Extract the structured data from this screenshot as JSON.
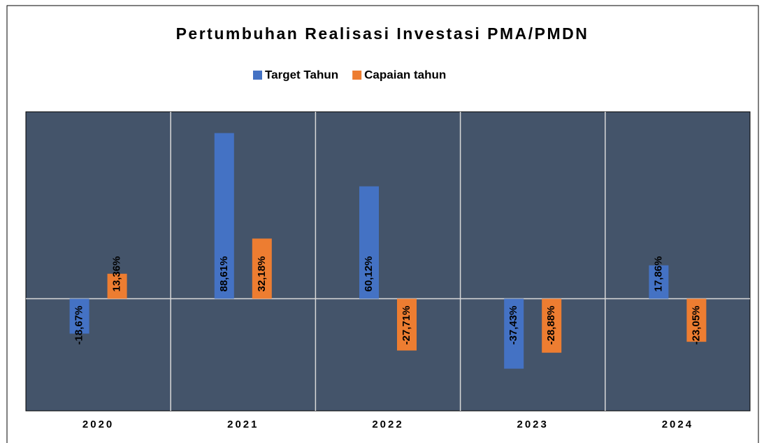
{
  "chart_data": {
    "type": "bar",
    "title": "Pertumbuhan Realisasi Investasi PMA/PMDN",
    "categories": [
      "2020",
      "2021",
      "2022",
      "2023",
      "2024"
    ],
    "series": [
      {
        "name": "Target Tahun",
        "color": "#4472c4",
        "values": [
          -18.67,
          88.61,
          60.12,
          -37.43,
          17.86
        ],
        "value_labels": [
          "-18,67%",
          "88,61%",
          "60,12%",
          "-37,43%",
          "17,86%"
        ]
      },
      {
        "name": "Capaian tahun",
        "color": "#ed7d31",
        "values": [
          13.36,
          32.18,
          -27.71,
          -28.88,
          -23.05
        ],
        "value_labels": [
          "13,36%",
          "32,18%",
          "-27,71%",
          "-28,88%",
          "-23,05%"
        ]
      }
    ],
    "ylim": [
      -60,
      100
    ],
    "plot_background": "#44546a"
  }
}
